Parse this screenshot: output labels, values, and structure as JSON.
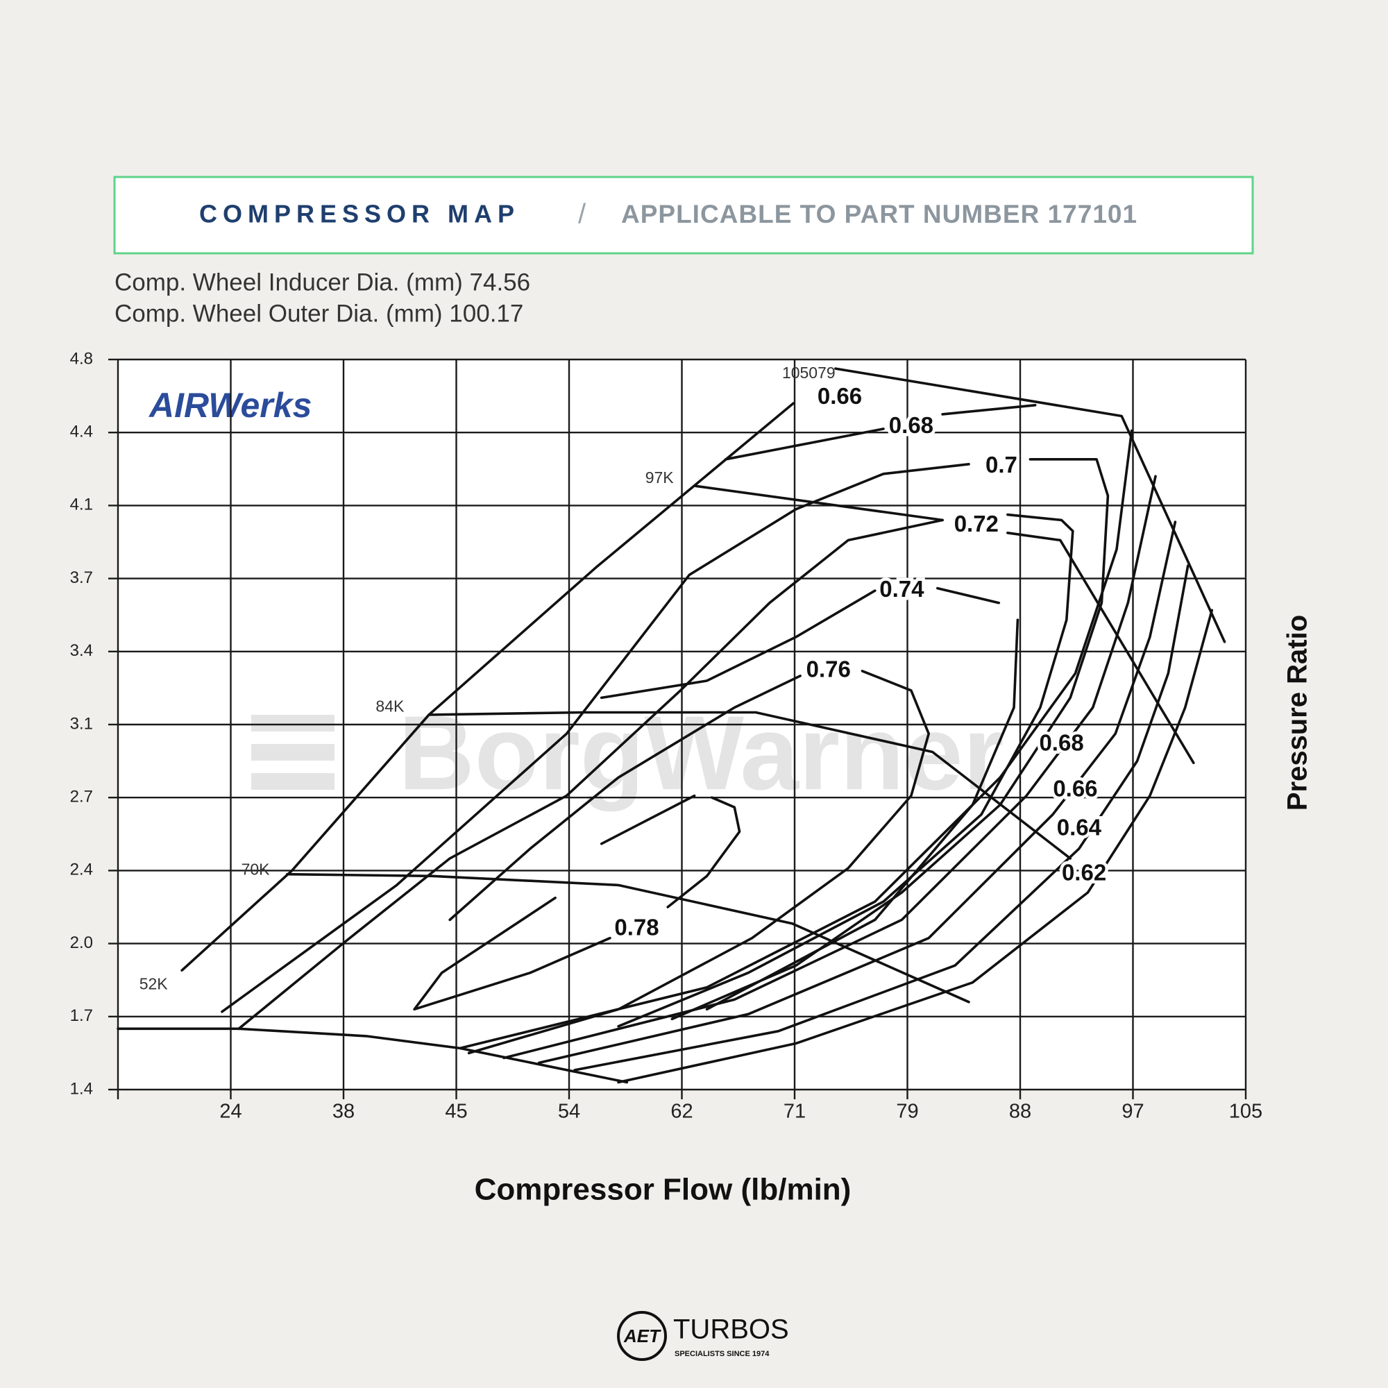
{
  "header": {
    "title": "COMPRESSOR MAP",
    "separator": "/",
    "subtitle": "APPLICABLE TO PART NUMBER 177101"
  },
  "specs": [
    "Comp. Wheel Inducer Dia. (mm) 74.56",
    "Comp. Wheel Outer Dia. (mm) 100.17"
  ],
  "footer": {
    "badge": "AET",
    "brand": "TURBOS",
    "tagline": "SPECIALISTS SINCE 1974"
  },
  "chart_data": {
    "type": "contour",
    "logo": "AIRWerks",
    "watermark": "BorgWarner",
    "x_label": "Compressor Flow (lb/min)",
    "y_label": "Pressure Ratio",
    "xlim": [
      15,
      105
    ],
    "xticks": [
      24,
      38,
      45,
      54,
      62,
      71,
      79,
      88,
      97,
      105
    ],
    "ylim": [
      1.4,
      4.8
    ],
    "yticks": [
      1.4,
      1.7,
      {
        "value": 2,
        "label": "2.0"
      },
      2.4,
      2.7,
      3.1,
      3.4,
      3.7,
      4.1,
      4.4,
      4.8
    ],
    "grid": true,
    "line_color": "#111111",
    "speed_lines": [
      {
        "x": [
          15,
          25.0,
          39.4,
          45.3,
          58.1
        ],
        "y": [
          1.65,
          1.65,
          1.62,
          1.57,
          1.43
        ]
      },
      {
        "x": [
          31.0,
          43.5,
          57.5,
          70.8,
          83.9
        ],
        "y": [
          2.38,
          2.37,
          2.32,
          2.11,
          1.76
        ]
      },
      {
        "x": [
          43.3,
          55.0,
          67.9,
          81.0,
          92.0
        ],
        "y": [
          3.14,
          3.15,
          3.15,
          2.95,
          2.45
        ]
      },
      {
        "x": [
          63.1,
          81.8,
          null,
          87.0,
          91.2,
          101.3
        ],
        "y": [
          4.18,
          4.02,
          null,
          3.95,
          3.91,
          2.89
        ]
      },
      {
        "x": [
          73.9,
          96.1,
          103.5
        ],
        "y": [
          4.75,
          4.49,
          3.44
        ]
      }
    ],
    "speed_labels": [
      {
        "text": "52K",
        "x": 16.7,
        "y": 1.83
      },
      {
        "text": "70K",
        "x": 25.3,
        "y": 2.4
      },
      {
        "text": "84K",
        "x": 40.0,
        "y": 3.17
      },
      {
        "text": "97K",
        "x": 59.4,
        "y": 4.21
      },
      {
        "text": "105079",
        "x": 70.0,
        "y": 4.72
      }
    ],
    "contours": [
      {
        "x": [
          70.9,
          55.9,
          43.3,
          31.6,
          20.1
        ],
        "y": [
          4.56,
          3.76,
          3.14,
          2.4,
          1.89
        ]
      },
      {
        "x": [
          77.3,
          65.5
        ],
        "y": [
          4.42,
          4.29
        ]
      },
      {
        "x": [
          81.8,
          89.2
        ],
        "y": [
          4.5,
          4.55
        ]
      },
      {
        "x": [
          83.9,
          77.3,
          71.1,
          62.6,
          53.8,
          41.3,
          23.3
        ],
        "y": [
          4.27,
          4.23,
          4.08,
          3.72,
          3.05,
          2.32,
          1.72
        ]
      },
      {
        "x": [
          81.8,
          74.8,
          69.0,
          61.9,
          53.8,
          44.6,
          38.1,
          25.0
        ],
        "y": [
          4.02,
          3.91,
          3.6,
          3.24,
          2.71,
          2.45,
          2.01,
          1.65
        ]
      },
      {
        "x": [
          76.7,
          71.1,
          64.0,
          56.3
        ],
        "y": [
          3.65,
          3.46,
          3.28,
          3.21
        ]
      },
      {
        "x": [
          81.4,
          86.3
        ],
        "y": [
          3.66,
          3.6
        ]
      },
      {
        "x": [
          71.4,
          66.2,
          57.5,
          50.9,
          44.6
        ],
        "y": [
          3.3,
          3.17,
          2.81,
          2.49,
          2.13
        ]
      },
      {
        "x": [
          75.8,
          79.3,
          80.7,
          79.3,
          74.8,
          67.6,
          57.5,
          46.0
        ],
        "y": [
          3.32,
          3.24,
          3.05,
          2.71,
          2.41,
          2.03,
          1.73,
          1.55
        ]
      },
      {
        "x": [
          56.9,
          50.9,
          42.4,
          44.1,
          52.9
        ],
        "y": [
          2.03,
          1.88,
          1.73,
          1.88,
          2.25
        ]
      },
      {
        "x": [
          56.3,
          63.0
        ],
        "y": [
          2.51,
          2.71
        ]
      },
      {
        "x": [
          64.4,
          66.2,
          66.6,
          64.0,
          61.0
        ],
        "y": [
          2.7,
          2.66,
          2.56,
          2.37,
          2.2
        ]
      },
      {
        "x": [
          102.6,
          100.7,
          98.2,
          93.4,
          84.2,
          71.1,
          57.5
        ],
        "y": [
          3.57,
          3.17,
          2.71,
          2.28,
          1.84,
          1.59,
          1.43
        ]
      },
      {
        "x": [
          100.9,
          99.5,
          97.3,
          92.7,
          82.8,
          69.7,
          54.4
        ],
        "y": [
          3.77,
          3.31,
          2.9,
          2.49,
          1.91,
          1.64,
          1.48
        ]
      },
      {
        "x": [
          100.0,
          98.2,
          95.6,
          90.6,
          80.7,
          67.3,
          51.6
        ],
        "y": [
          4.01,
          3.46,
          3.05,
          2.63,
          2.03,
          1.71,
          1.51
        ]
      },
      {
        "x": [
          98.6,
          96.6,
          93.8,
          88.5,
          78.6,
          66.2,
          48.8
        ],
        "y": [
          4.22,
          3.6,
          3.17,
          2.71,
          2.13,
          1.77,
          1.53
        ]
      },
      {
        "x": [
          96.9,
          95.7,
          92.4,
          86.4,
          76.7,
          64.0,
          45.3
        ],
        "y": [
          4.41,
          3.86,
          3.31,
          2.81,
          2.23,
          1.82,
          1.57
        ]
      },
      {
        "x": [
          88.8,
          94.1,
          95.0,
          94.5,
          92.0,
          86.4,
          78.6,
          71.1,
          61.3
        ],
        "y": [
          4.29,
          4.29,
          4.14,
          3.6,
          3.21,
          2.67,
          2.28,
          1.91,
          1.69
        ]
      },
      {
        "x": [
          87.0,
          91.3,
          92.2,
          91.7,
          89.6,
          84.9,
          77.3,
          67.3,
          57.5
        ],
        "y": [
          4.05,
          4.02,
          3.96,
          3.53,
          3.17,
          2.63,
          2.23,
          1.88,
          1.66
        ]
      },
      {
        "x": [
          87.8,
          87.5,
          84.2,
          76.7,
          64.0
        ],
        "y": [
          3.53,
          3.17,
          2.67,
          2.13,
          1.73
        ]
      }
    ],
    "efficiency_labels": [
      {
        "text": "0.66",
        "x": 74.2,
        "y": 4.59
      },
      {
        "text": "0.68",
        "x": 79.3,
        "y": 4.43
      },
      {
        "text": "0.7",
        "x": 86.5,
        "y": 4.26
      },
      {
        "text": "0.72",
        "x": 84.5,
        "y": 3.99
      },
      {
        "text": "0.74",
        "x": 78.6,
        "y": 3.65
      },
      {
        "text": "0.76",
        "x": 73.4,
        "y": 3.32
      },
      {
        "text": "0.78",
        "x": 58.8,
        "y": 2.08
      },
      {
        "text": "0.68",
        "x": 91.3,
        "y": 2.99
      },
      {
        "text": "0.66",
        "x": 92.4,
        "y": 2.74
      },
      {
        "text": "0.64",
        "x": 92.7,
        "y": 2.57
      },
      {
        "text": "0.62",
        "x": 93.1,
        "y": 2.38
      }
    ]
  }
}
